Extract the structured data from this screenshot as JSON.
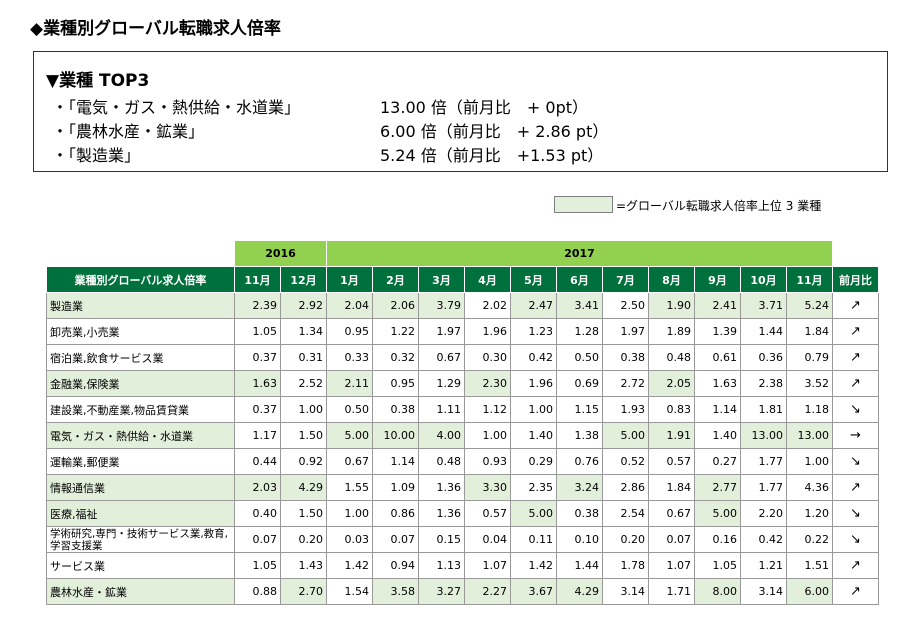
{
  "title": "◆業種別グローバル転職求人倍率",
  "top3": {
    "heading": "▼業種 TOP3",
    "items": [
      {
        "name": "・「電気・ガス・熱供給・水道業」",
        "value": "13.00 倍（前月比　+ 0pt）"
      },
      {
        "name": "・「農林水産・鉱業」",
        "value": "6.00 倍（前月比　+ 2.86 pt）"
      },
      {
        "name": "・「製造業」",
        "value": "5.24 倍（前月比　+1.53 pt）"
      }
    ]
  },
  "legend": {
    "text": "=グローバル転職求人倍率上位 3 業種",
    "color": "#e2efda"
  },
  "table": {
    "years": [
      "2016",
      "2017"
    ],
    "headers": [
      "業種別グローバル求人倍率",
      "11月",
      "12月",
      "1月",
      "2月",
      "3月",
      "4月",
      "5月",
      "6月",
      "7月",
      "8月",
      "9月",
      "10月",
      "11月",
      "前月比"
    ],
    "rows": [
      {
        "name": "製造業",
        "values": [
          "2.39",
          "2.92",
          "2.04",
          "2.06",
          "3.79",
          "2.02",
          "2.47",
          "3.41",
          "2.50",
          "1.90",
          "2.41",
          "3.71",
          "5.24"
        ],
        "hl": [
          0,
          1,
          2,
          3,
          4,
          6,
          7,
          9,
          10,
          11,
          12
        ],
        "trend": "↗"
      },
      {
        "name": "卸売業,小売業",
        "values": [
          "1.05",
          "1.34",
          "0.95",
          "1.22",
          "1.97",
          "1.96",
          "1.23",
          "1.28",
          "1.97",
          "1.89",
          "1.39",
          "1.44",
          "1.84"
        ],
        "hl": [],
        "trend": "↗"
      },
      {
        "name": "宿泊業,飲食サービス業",
        "values": [
          "0.37",
          "0.31",
          "0.33",
          "0.32",
          "0.67",
          "0.30",
          "0.42",
          "0.50",
          "0.38",
          "0.48",
          "0.61",
          "0.36",
          "0.79"
        ],
        "hl": [],
        "trend": "↗"
      },
      {
        "name": "金融業,保険業",
        "values": [
          "1.63",
          "2.52",
          "2.11",
          "0.95",
          "1.29",
          "2.30",
          "1.96",
          "0.69",
          "2.72",
          "2.05",
          "1.63",
          "2.38",
          "3.52"
        ],
        "hl": [
          0,
          2,
          5,
          9
        ],
        "trend": "↗"
      },
      {
        "name": "建設業,不動産業,物品賃貸業",
        "values": [
          "0.37",
          "1.00",
          "0.50",
          "0.38",
          "1.11",
          "1.12",
          "1.00",
          "1.15",
          "1.93",
          "0.83",
          "1.14",
          "1.81",
          "1.18"
        ],
        "hl": [],
        "trend": "↘"
      },
      {
        "name": "電気・ガス・熱供給・水道業",
        "values": [
          "1.17",
          "1.50",
          "5.00",
          "10.00",
          "4.00",
          "1.00",
          "1.40",
          "1.38",
          "5.00",
          "1.91",
          "1.40",
          "13.00",
          "13.00"
        ],
        "hl": [
          2,
          3,
          4,
          8,
          9,
          11,
          12
        ],
        "trend": "→"
      },
      {
        "name": "運輸業,郵便業",
        "values": [
          "0.44",
          "0.92",
          "0.67",
          "1.14",
          "0.48",
          "0.93",
          "0.29",
          "0.76",
          "0.52",
          "0.57",
          "0.27",
          "1.77",
          "1.00"
        ],
        "hl": [],
        "trend": "↘"
      },
      {
        "name": "情報通信業",
        "values": [
          "2.03",
          "4.29",
          "1.55",
          "1.09",
          "1.36",
          "3.30",
          "2.35",
          "3.24",
          "2.86",
          "1.84",
          "2.77",
          "1.77",
          "4.36"
        ],
        "hl": [
          0,
          1,
          5,
          7,
          10
        ],
        "trend": "↗"
      },
      {
        "name": "医療,福祉",
        "values": [
          "0.40",
          "1.50",
          "1.00",
          "0.86",
          "1.36",
          "0.57",
          "5.00",
          "0.38",
          "2.54",
          "0.67",
          "5.00",
          "2.20",
          "1.20"
        ],
        "hl": [
          6,
          10
        ],
        "trend": "↘"
      },
      {
        "name": "学術研究,専門・技術サービス業,教育,学習支援業",
        "values": [
          "0.07",
          "0.20",
          "0.03",
          "0.07",
          "0.15",
          "0.04",
          "0.11",
          "0.10",
          "0.20",
          "0.07",
          "0.16",
          "0.42",
          "0.22"
        ],
        "hl": [],
        "trend": "↘",
        "wrap": true
      },
      {
        "name": "サービス業",
        "values": [
          "1.05",
          "1.43",
          "1.42",
          "0.94",
          "1.13",
          "1.07",
          "1.42",
          "1.44",
          "1.78",
          "1.07",
          "1.05",
          "1.21",
          "1.51"
        ],
        "hl": [],
        "trend": "↗"
      },
      {
        "name": "農林水産・鉱業",
        "values": [
          "0.88",
          "2.70",
          "1.54",
          "3.58",
          "3.27",
          "2.27",
          "3.67",
          "4.29",
          "3.14",
          "1.71",
          "8.00",
          "3.14",
          "6.00"
        ],
        "hl": [
          1,
          3,
          4,
          5,
          6,
          7,
          10,
          12
        ],
        "trend": "↗"
      }
    ]
  }
}
